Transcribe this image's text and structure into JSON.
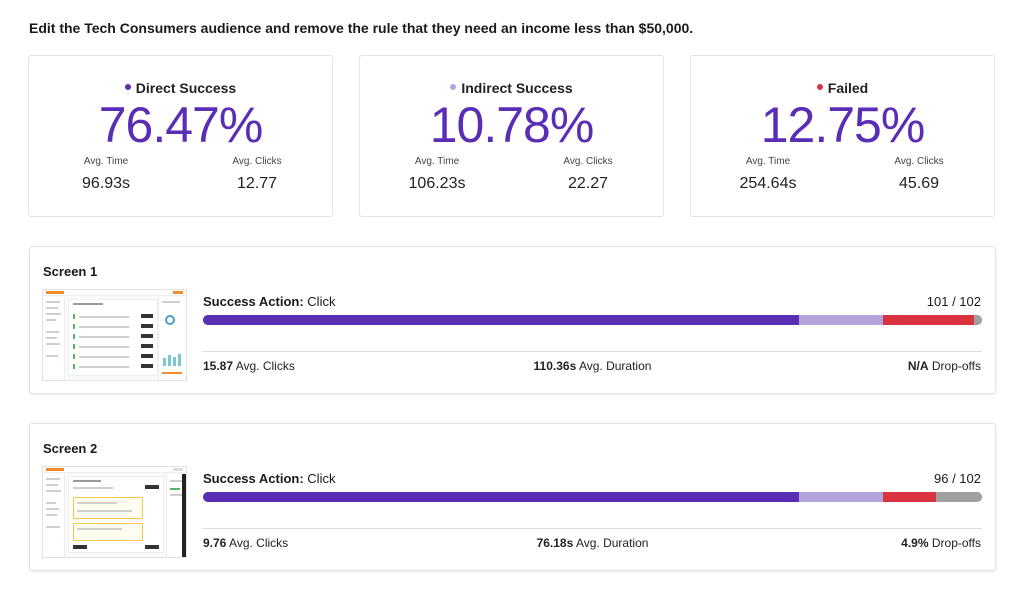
{
  "task": {
    "title": "Edit the Tech Consumers audience and remove the rule that they need an income less than $50,000."
  },
  "stats": [
    {
      "label": "Direct Success",
      "dot_color": "#5a2db5",
      "percent": "76.47%",
      "avg_time_label": "Avg. Time",
      "avg_time": "96.93s",
      "avg_clicks_label": "Avg. Clicks",
      "avg_clicks": "12.77"
    },
    {
      "label": "Indirect Success",
      "dot_color": "#b3a4de",
      "percent": "10.78%",
      "avg_time_label": "Avg. Time",
      "avg_time": "106.23s",
      "avg_clicks_label": "Avg. Clicks",
      "avg_clicks": "22.27"
    },
    {
      "label": "Failed",
      "dot_color": "#d9333f",
      "percent": "12.75%",
      "avg_time_label": "Avg. Time",
      "avg_time": "254.64s",
      "avg_clicks_label": "Avg. Clicks",
      "avg_clicks": "45.69"
    }
  ],
  "colors": {
    "direct": "#5a2db5",
    "indirect": "#b3a4de",
    "failed": "#d9333f",
    "dropoff": "#a0a0a0"
  },
  "screens": [
    {
      "title": "Screen 1",
      "action_label": "Success Action:",
      "action_value": "Click",
      "count": "101 / 102",
      "bar": {
        "direct": 0.7647,
        "indirect": 0.1078,
        "failed": 0.1176,
        "dropoff": 0.0099
      },
      "clicks_value": "15.87",
      "clicks_label": "Avg. Clicks",
      "duration_value": "110.36s",
      "duration_label": "Avg. Duration",
      "dropoffs_value": "N/A",
      "dropoffs_label": "Drop-offs"
    },
    {
      "title": "Screen 2",
      "action_label": "Success Action:",
      "action_value": "Click",
      "count": "96 / 102",
      "bar": {
        "direct": 0.7647,
        "indirect": 0.1078,
        "failed": 0.0686,
        "dropoff": 0.0589
      },
      "clicks_value": "9.76",
      "clicks_label": "Avg. Clicks",
      "duration_value": "76.18s",
      "duration_label": "Avg. Duration",
      "dropoffs_value": "4.9%",
      "dropoffs_label": "Drop-offs"
    }
  ]
}
